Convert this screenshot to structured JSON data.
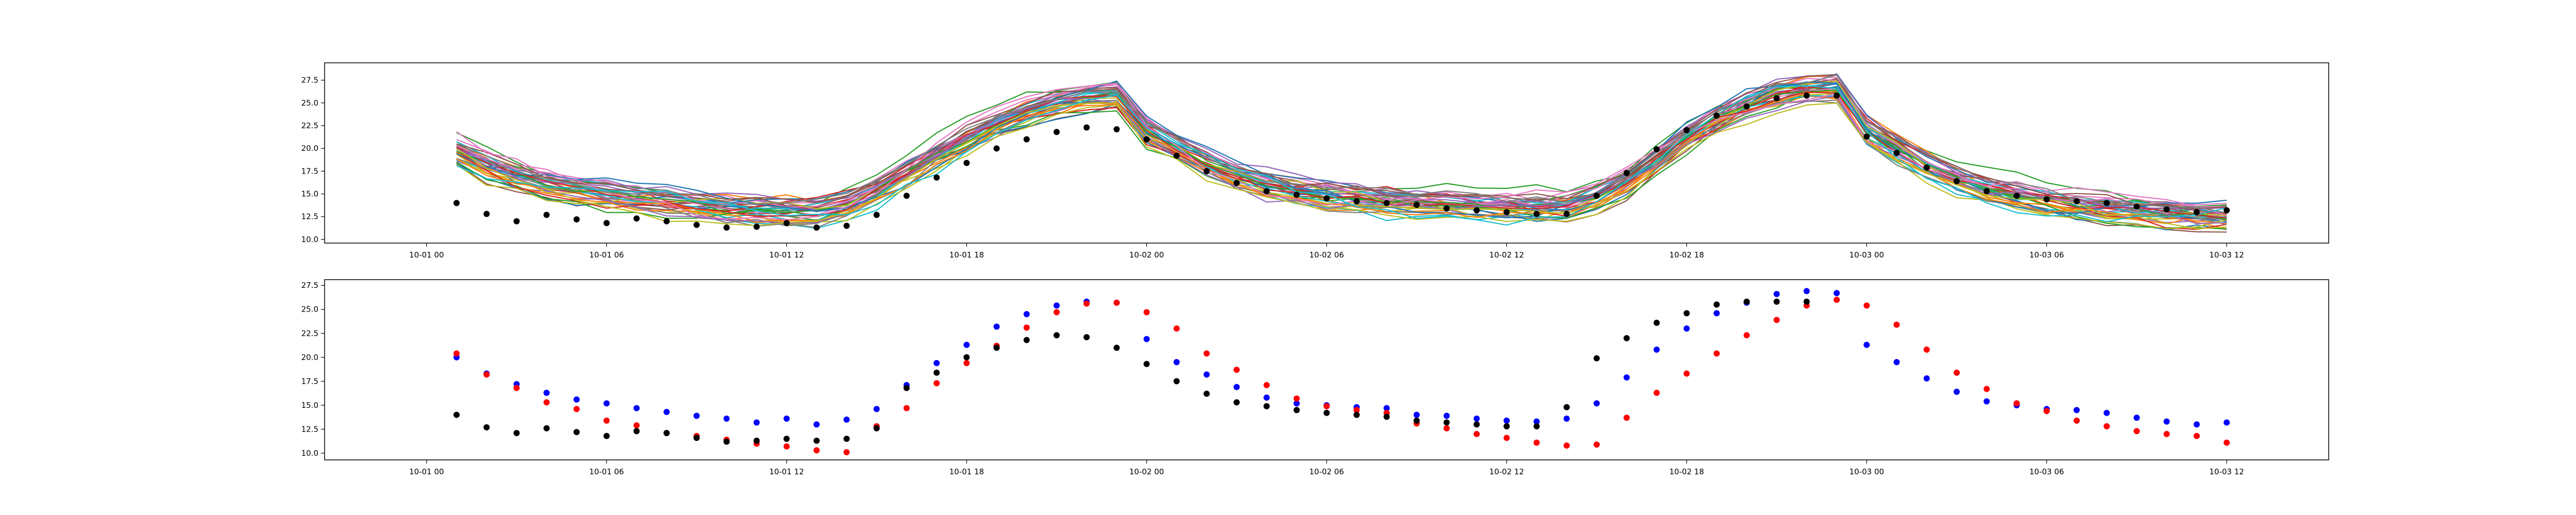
{
  "chart_data": [
    {
      "type": "line",
      "title": "",
      "xlabel": "",
      "ylabel": "",
      "grid": false,
      "legend": false,
      "x_ticks": [
        "10-01 00",
        "10-01 06",
        "10-01 12",
        "10-01 18",
        "10-02 00",
        "10-02 06",
        "10-02 12",
        "10-02 18",
        "10-03 00",
        "10-03 06",
        "10-03 12"
      ],
      "y_ticks": [
        "10.0",
        "12.5",
        "15.0",
        "17.5",
        "20.0",
        "22.5",
        "25.0",
        "27.5"
      ],
      "xlim_hours": [
        -3.4,
        63.4
      ],
      "ylim": [
        9.6,
        29.4
      ],
      "ensemble": {
        "members": 40,
        "x_hours": [
          1,
          2,
          3,
          4,
          5,
          6,
          7,
          8,
          9,
          10,
          11,
          12,
          13,
          14,
          15,
          16,
          17,
          18,
          19,
          20,
          21,
          22,
          23,
          24,
          25,
          26,
          27,
          28,
          29,
          30,
          31,
          32,
          33,
          34,
          35,
          36,
          37,
          38,
          39,
          40,
          41,
          42,
          43,
          44,
          45,
          46,
          47,
          48,
          49,
          50,
          51,
          52,
          53,
          54,
          55,
          56,
          57,
          58,
          59,
          60
        ],
        "base": [
          20.0,
          18.3,
          17.1,
          16.2,
          15.6,
          15.1,
          14.6,
          14.2,
          13.8,
          13.4,
          13.2,
          13.0,
          13.1,
          13.8,
          15.4,
          17.5,
          19.4,
          21.2,
          22.8,
          24.2,
          25.2,
          25.8,
          26.0,
          22.0,
          20.2,
          18.4,
          17.0,
          16.0,
          15.3,
          14.9,
          14.6,
          14.3,
          14.1,
          14.0,
          13.9,
          13.8,
          13.7,
          13.8,
          14.8,
          16.6,
          18.9,
          21.4,
          23.3,
          24.8,
          25.9,
          26.5,
          26.8,
          22.0,
          20.0,
          18.2,
          16.8,
          15.7,
          15.0,
          14.4,
          14.0,
          13.6,
          13.3,
          13.0,
          12.8,
          12.6
        ],
        "spread": 1.4,
        "colors": [
          "#1f77b4",
          "#ff7f0e",
          "#2ca02c",
          "#d62728",
          "#9467bd",
          "#8c564b",
          "#e377c2",
          "#7f7f7f",
          "#bcbd22",
          "#17becf"
        ]
      },
      "series": [
        {
          "color": "#000000",
          "x_hours": [
            1,
            2,
            3,
            4,
            5,
            6,
            7,
            8,
            9,
            10,
            11,
            12,
            13,
            14,
            15,
            16,
            17,
            18,
            19,
            20,
            21,
            22,
            23,
            24,
            25,
            26,
            27,
            28,
            29,
            30,
            31,
            32,
            33,
            34,
            35,
            36,
            37,
            38,
            39,
            40,
            41,
            42,
            43,
            44,
            45,
            46,
            47,
            48,
            49,
            50,
            51,
            52,
            53,
            54,
            55,
            56,
            57,
            58,
            59,
            60
          ],
          "values": [
            14.0,
            12.8,
            12.0,
            12.7,
            12.2,
            11.8,
            12.3,
            12.0,
            11.6,
            11.3,
            11.4,
            11.8,
            11.3,
            11.5,
            12.7,
            14.8,
            16.8,
            18.4,
            20.0,
            21.0,
            21.8,
            22.3,
            22.1,
            21.0,
            19.2,
            17.5,
            16.2,
            15.3,
            14.9,
            14.5,
            14.2,
            14.0,
            13.8,
            13.4,
            13.2,
            13.0,
            12.8,
            12.8,
            14.8,
            17.3,
            19.9,
            22.0,
            23.6,
            24.6,
            25.5,
            25.8,
            25.8,
            21.3,
            19.5,
            17.9,
            16.4,
            15.3,
            14.8,
            14.4,
            14.2,
            14.0,
            13.6,
            13.3,
            13.0,
            13.2
          ]
        }
      ]
    },
    {
      "type": "scatter",
      "title": "",
      "xlabel": "",
      "ylabel": "",
      "grid": false,
      "legend": false,
      "x_ticks": [
        "10-01 00",
        "10-01 06",
        "10-01 12",
        "10-01 18",
        "10-02 00",
        "10-02 06",
        "10-02 12",
        "10-02 18",
        "10-03 00",
        "10-03 06",
        "10-03 12"
      ],
      "y_ticks": [
        "10.0",
        "12.5",
        "15.0",
        "17.5",
        "20.0",
        "22.5",
        "25.0",
        "27.5"
      ],
      "xlim_hours": [
        -3.4,
        63.4
      ],
      "ylim": [
        9.3,
        28.1
      ],
      "series": [
        {
          "color": "#0000ff",
          "x_hours": [
            1,
            2,
            3,
            4,
            5,
            6,
            7,
            8,
            9,
            10,
            11,
            12,
            13,
            14,
            15,
            16,
            17,
            18,
            19,
            20,
            21,
            22,
            23,
            24,
            25,
            26,
            27,
            28,
            29,
            30,
            31,
            32,
            33,
            34,
            35,
            36,
            37,
            38,
            39,
            40,
            41,
            42,
            43,
            44,
            45,
            46,
            47,
            48,
            49,
            50,
            51,
            52,
            53,
            54,
            55,
            56,
            57,
            58,
            59,
            60
          ],
          "values": [
            20.0,
            18.3,
            17.2,
            16.3,
            15.6,
            15.2,
            14.7,
            14.3,
            13.9,
            13.6,
            13.2,
            13.6,
            13.0,
            13.5,
            14.6,
            17.1,
            19.4,
            21.3,
            23.2,
            24.5,
            25.4,
            25.8,
            25.7,
            21.9,
            19.5,
            18.2,
            16.9,
            15.8,
            15.2,
            15.0,
            14.8,
            14.7,
            14.0,
            13.9,
            13.6,
            13.4,
            13.3,
            13.6,
            15.2,
            17.9,
            20.8,
            23.0,
            24.6,
            25.7,
            26.6,
            26.9,
            26.7,
            21.3,
            19.5,
            17.8,
            16.4,
            15.4,
            15.0,
            14.6,
            14.5,
            14.2,
            13.7,
            13.3,
            13.0,
            13.2
          ]
        },
        {
          "color": "#ff0000",
          "x_hours": [
            1,
            2,
            3,
            4,
            5,
            6,
            7,
            8,
            9,
            10,
            11,
            12,
            13,
            14,
            15,
            16,
            17,
            18,
            19,
            20,
            21,
            22,
            23,
            24,
            25,
            26,
            27,
            28,
            29,
            30,
            31,
            32,
            33,
            34,
            35,
            36,
            37,
            38,
            39,
            40,
            41,
            42,
            43,
            44,
            45,
            46,
            47,
            48,
            49,
            50,
            51,
            52,
            53,
            54,
            55,
            56,
            57,
            58,
            59,
            60
          ],
          "values": [
            20.4,
            18.2,
            16.8,
            15.3,
            14.6,
            13.4,
            12.9,
            12.1,
            11.8,
            11.4,
            11.0,
            10.7,
            10.3,
            10.1,
            12.8,
            14.7,
            17.3,
            19.4,
            21.2,
            23.1,
            24.7,
            25.6,
            25.7,
            24.7,
            23.0,
            20.4,
            18.7,
            17.1,
            15.7,
            14.9,
            14.5,
            14.2,
            13.1,
            12.6,
            12.0,
            11.6,
            11.1,
            10.8,
            10.9,
            13.7,
            16.3,
            18.3,
            20.4,
            22.3,
            23.9,
            25.4,
            26.0,
            25.4,
            23.4,
            20.8,
            18.4,
            16.7,
            15.2,
            14.4,
            13.4,
            12.8,
            12.3,
            12.0,
            11.8,
            11.1
          ]
        },
        {
          "color": "#000000",
          "x_hours": [
            1,
            2,
            3,
            4,
            5,
            6,
            7,
            8,
            9,
            10,
            11,
            12,
            13,
            14,
            15,
            16,
            17,
            18,
            19,
            20,
            21,
            22,
            23,
            24,
            25,
            26,
            27,
            28,
            29,
            30,
            31,
            32,
            33,
            34,
            35,
            36,
            37,
            38,
            39,
            40,
            41,
            42,
            43,
            44,
            45,
            46
          ],
          "values": [
            14.0,
            12.7,
            12.1,
            12.6,
            12.2,
            11.8,
            12.3,
            12.1,
            11.6,
            11.2,
            11.3,
            11.5,
            11.3,
            11.5,
            12.6,
            16.8,
            18.4,
            20.0,
            21.0,
            21.8,
            22.3,
            22.1,
            21.0,
            19.3,
            17.5,
            16.2,
            15.3,
            14.9,
            14.5,
            14.2,
            14.0,
            13.8,
            13.4,
            13.2,
            13.0,
            12.8,
            12.8,
            14.8,
            19.9,
            22.0,
            23.6,
            24.6,
            25.5,
            25.8,
            25.8,
            25.8
          ]
        }
      ]
    }
  ]
}
